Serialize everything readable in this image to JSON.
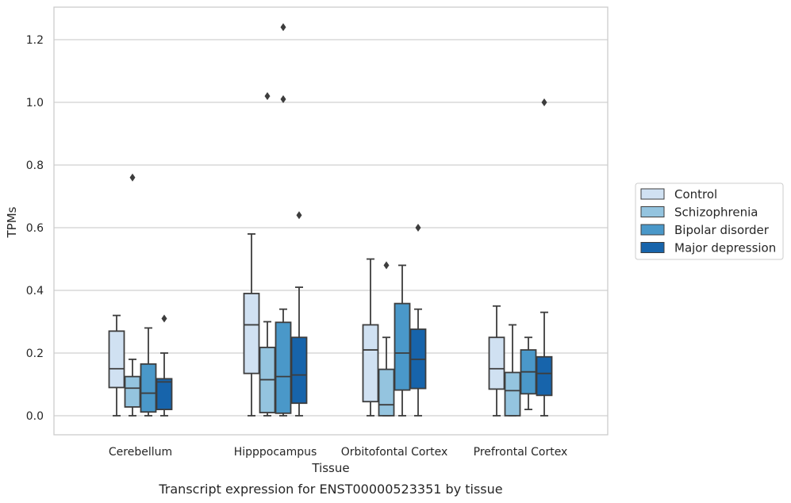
{
  "chart_data": {
    "type": "box",
    "title": "",
    "caption": "Transcript expression for ENST00000523351 by tissue",
    "xlabel": "Tissue",
    "ylabel": "TPMs",
    "ylim": [
      -0.06,
      1.3
    ],
    "yticks": [
      "0.0",
      "0.2",
      "0.4",
      "0.6",
      "0.8",
      "1.0",
      "1.2"
    ],
    "ytick_values": [
      0.0,
      0.2,
      0.4,
      0.6,
      0.8,
      1.0,
      1.2
    ],
    "grid": "horizontal",
    "legend_position": "right",
    "categories": [
      "Cerebellum",
      "Hipppocampus",
      "Orbitofontal Cortex",
      "Prefrontal Cortex"
    ],
    "series": [
      {
        "name": "Control",
        "color": "#d0e1f2",
        "boxes": [
          {
            "whislo": 0.0,
            "q1": 0.09,
            "med": 0.15,
            "q3": 0.27,
            "whishi": 0.32,
            "fliers": []
          },
          {
            "whislo": 0.0,
            "q1": 0.135,
            "med": 0.29,
            "q3": 0.39,
            "whishi": 0.58,
            "fliers": []
          },
          {
            "whislo": 0.0,
            "q1": 0.045,
            "med": 0.21,
            "q3": 0.29,
            "whishi": 0.5,
            "fliers": []
          },
          {
            "whislo": 0.0,
            "q1": 0.085,
            "med": 0.15,
            "q3": 0.25,
            "whishi": 0.35,
            "fliers": []
          }
        ]
      },
      {
        "name": "Schizophrenia",
        "color": "#94c4df",
        "boxes": [
          {
            "whislo": 0.0,
            "q1": 0.028,
            "med": 0.088,
            "q3": 0.125,
            "whishi": 0.18,
            "fliers": [
              0.76
            ]
          },
          {
            "whislo": 0.0,
            "q1": 0.01,
            "med": 0.115,
            "q3": 0.218,
            "whishi": 0.3,
            "fliers": [
              1.02
            ]
          },
          {
            "whislo": 0.0,
            "q1": 0.0,
            "med": 0.035,
            "q3": 0.148,
            "whishi": 0.25,
            "fliers": [
              0.48
            ]
          },
          {
            "whislo": 0.0,
            "q1": 0.0,
            "med": 0.08,
            "q3": 0.138,
            "whishi": 0.29,
            "fliers": []
          }
        ]
      },
      {
        "name": "Bipolar disorder",
        "color": "#4a98c9",
        "boxes": [
          {
            "whislo": 0.0,
            "q1": 0.012,
            "med": 0.072,
            "q3": 0.165,
            "whishi": 0.28,
            "fliers": []
          },
          {
            "whislo": 0.0,
            "q1": 0.008,
            "med": 0.125,
            "q3": 0.298,
            "whishi": 0.34,
            "fliers": [
              1.01,
              1.24
            ]
          },
          {
            "whislo": 0.0,
            "q1": 0.082,
            "med": 0.2,
            "q3": 0.358,
            "whishi": 0.48,
            "fliers": []
          },
          {
            "whislo": 0.02,
            "q1": 0.07,
            "med": 0.14,
            "q3": 0.21,
            "whishi": 0.25,
            "fliers": []
          }
        ]
      },
      {
        "name": "Major depression",
        "color": "#1764ab",
        "boxes": [
          {
            "whislo": 0.0,
            "q1": 0.02,
            "med": 0.108,
            "q3": 0.118,
            "whishi": 0.2,
            "fliers": [
              0.31
            ]
          },
          {
            "whislo": 0.0,
            "q1": 0.04,
            "med": 0.13,
            "q3": 0.25,
            "whishi": 0.41,
            "fliers": [
              0.64
            ]
          },
          {
            "whislo": 0.0,
            "q1": 0.087,
            "med": 0.18,
            "q3": 0.276,
            "whishi": 0.34,
            "fliers": [
              0.6
            ]
          },
          {
            "whislo": 0.0,
            "q1": 0.065,
            "med": 0.135,
            "q3": 0.188,
            "whishi": 0.33,
            "fliers": [
              1.0
            ]
          }
        ]
      }
    ]
  }
}
